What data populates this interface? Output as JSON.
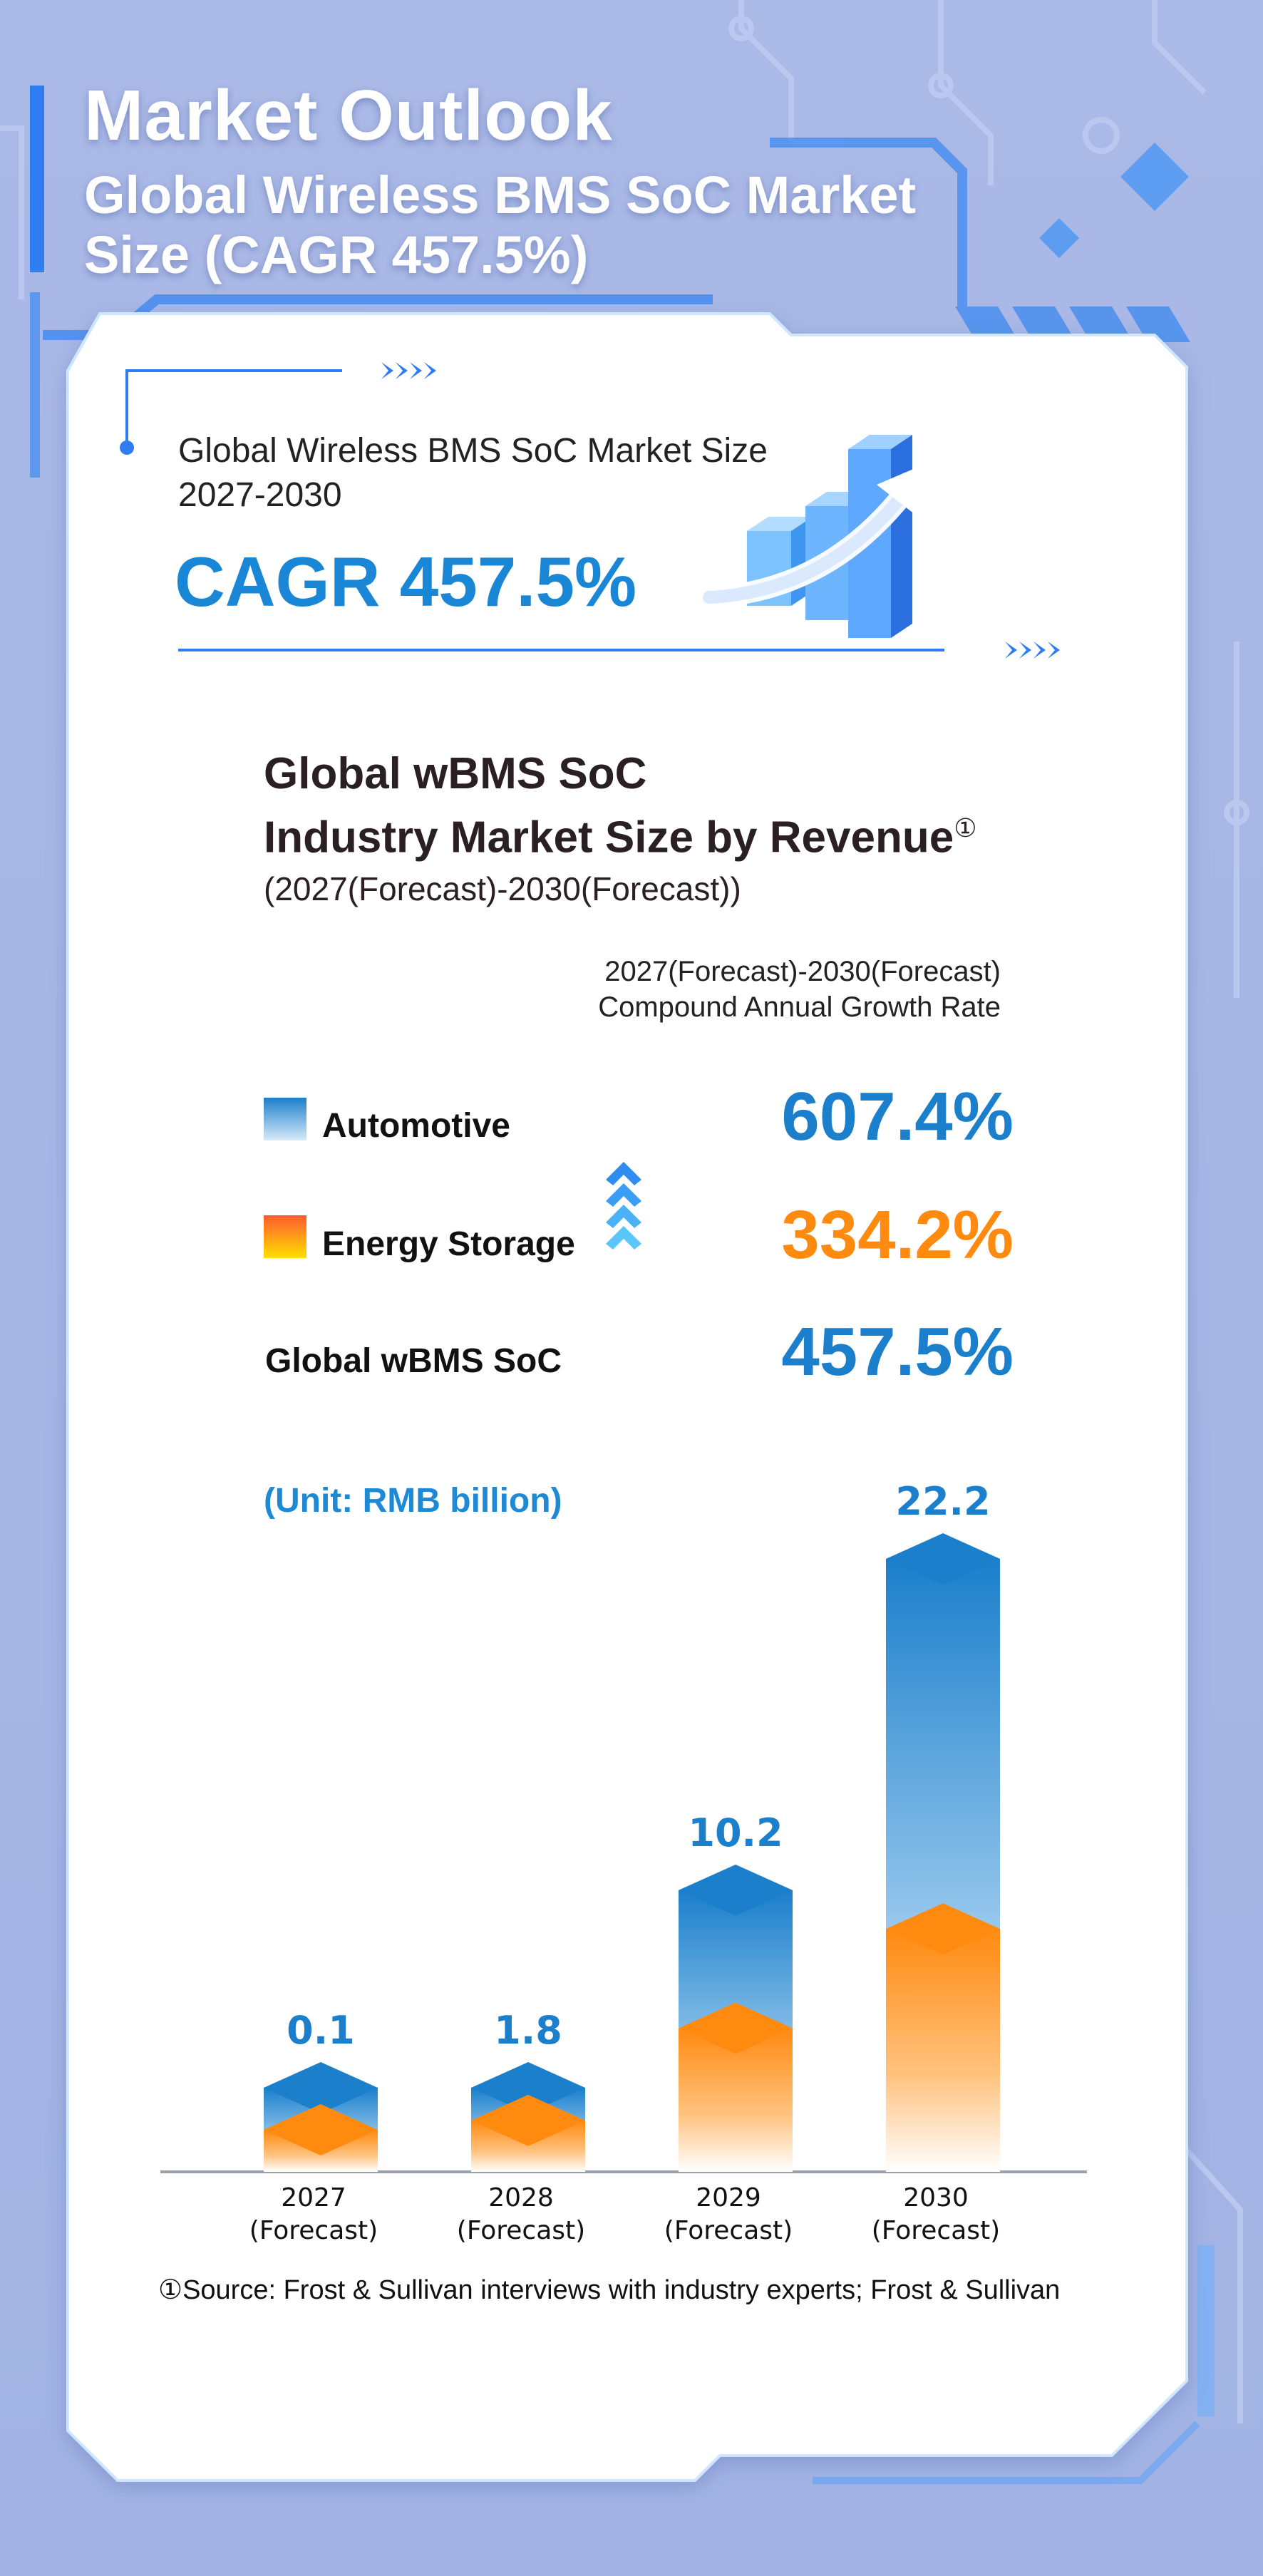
{
  "header": {
    "title": "Market Outlook",
    "subtitle": "Global Wireless BMS SoC Market Size (CAGR 457.5%)"
  },
  "highlight": {
    "line1": "Global Wireless BMS SoC Market Size",
    "line2": "2027-2030",
    "cagr": "CAGR 457.5%"
  },
  "chart_heading": {
    "line1": "Global wBMS SoC",
    "line2": "Industry Market Size by Revenue",
    "footnote_mark": "①",
    "period": "(2027(Forecast)-2030(Forecast))"
  },
  "growth": {
    "header_line1": "2027(Forecast)-2030(Forecast)",
    "header_line2": "Compound Annual Growth Rate",
    "rows": [
      {
        "label": "Automotive",
        "rate": "607.4%"
      },
      {
        "label": "Energy Storage",
        "rate": "334.2%"
      },
      {
        "label": "Global wBMS SoC",
        "rate": "457.5%"
      }
    ]
  },
  "colors": {
    "automotive": "#1b7fcb",
    "energy_storage": "#ff8a10",
    "total": "#1b7fcb",
    "accent": "#1e8ad6"
  },
  "chart_data": {
    "type": "bar",
    "stacked": true,
    "unit": "(Unit: RMB billion)",
    "categories": [
      [
        "2027",
        "(Forecast)"
      ],
      [
        "2028",
        "(Forecast)"
      ],
      [
        "2029",
        "(Forecast)"
      ],
      [
        "2030",
        "(Forecast)"
      ]
    ],
    "totals": [
      0.1,
      1.8,
      10.2,
      22.2
    ],
    "total_labels": [
      "0.1",
      "1.8",
      "10.2",
      "22.2"
    ],
    "series": [
      {
        "name": "Automotive",
        "values": [
          0.05,
          0.7,
          5.0,
          13.4
        ]
      },
      {
        "name": "Energy Storage",
        "values": [
          0.05,
          1.1,
          5.2,
          8.8
        ]
      }
    ]
  },
  "source": "①Source: Frost & Sullivan interviews with industry experts; Frost & Sullivan"
}
